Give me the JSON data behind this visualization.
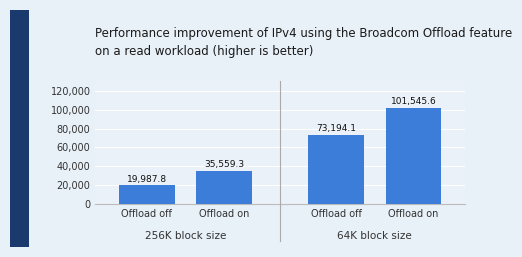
{
  "title": "Performance improvement of IPv4 using the Broadcom Offload feature\non a read workload (higher is better)",
  "groups": [
    {
      "label": "256K block size",
      "bars": [
        {
          "x_label": "Offload off",
          "value": 19987.8,
          "value_label": "19,987.8"
        },
        {
          "x_label": "Offload on",
          "value": 35559.3,
          "value_label": "35,559.3"
        }
      ]
    },
    {
      "label": "64K block size",
      "bars": [
        {
          "x_label": "Offload off",
          "value": 73194.1,
          "value_label": "73,194.1"
        },
        {
          "x_label": "Offload on",
          "value": 101545.6,
          "value_label": "101,545.6"
        }
      ]
    }
  ],
  "bar_color": "#3B7DD8",
  "background_color": "#E8F0F8",
  "chart_bg_color": "#EAF1F8",
  "title_color": "#1a1a1a",
  "axis_label_color": "#333333",
  "value_label_color": "#111111",
  "divider_color": "#aaaaaa",
  "left_strip_color": "#1a3a6e",
  "grid_color": "#ffffff",
  "ylim": [
    0,
    130000
  ],
  "yticks": [
    0,
    20000,
    40000,
    60000,
    80000,
    100000,
    120000
  ],
  "ytick_labels": [
    "0",
    "20,000",
    "40,000",
    "60,000",
    "80,000",
    "100,000",
    "120,000"
  ],
  "title_fontsize": 8.5,
  "tick_fontsize": 7.0,
  "value_label_fontsize": 6.5,
  "group_label_fontsize": 7.5,
  "bar_width": 0.65
}
